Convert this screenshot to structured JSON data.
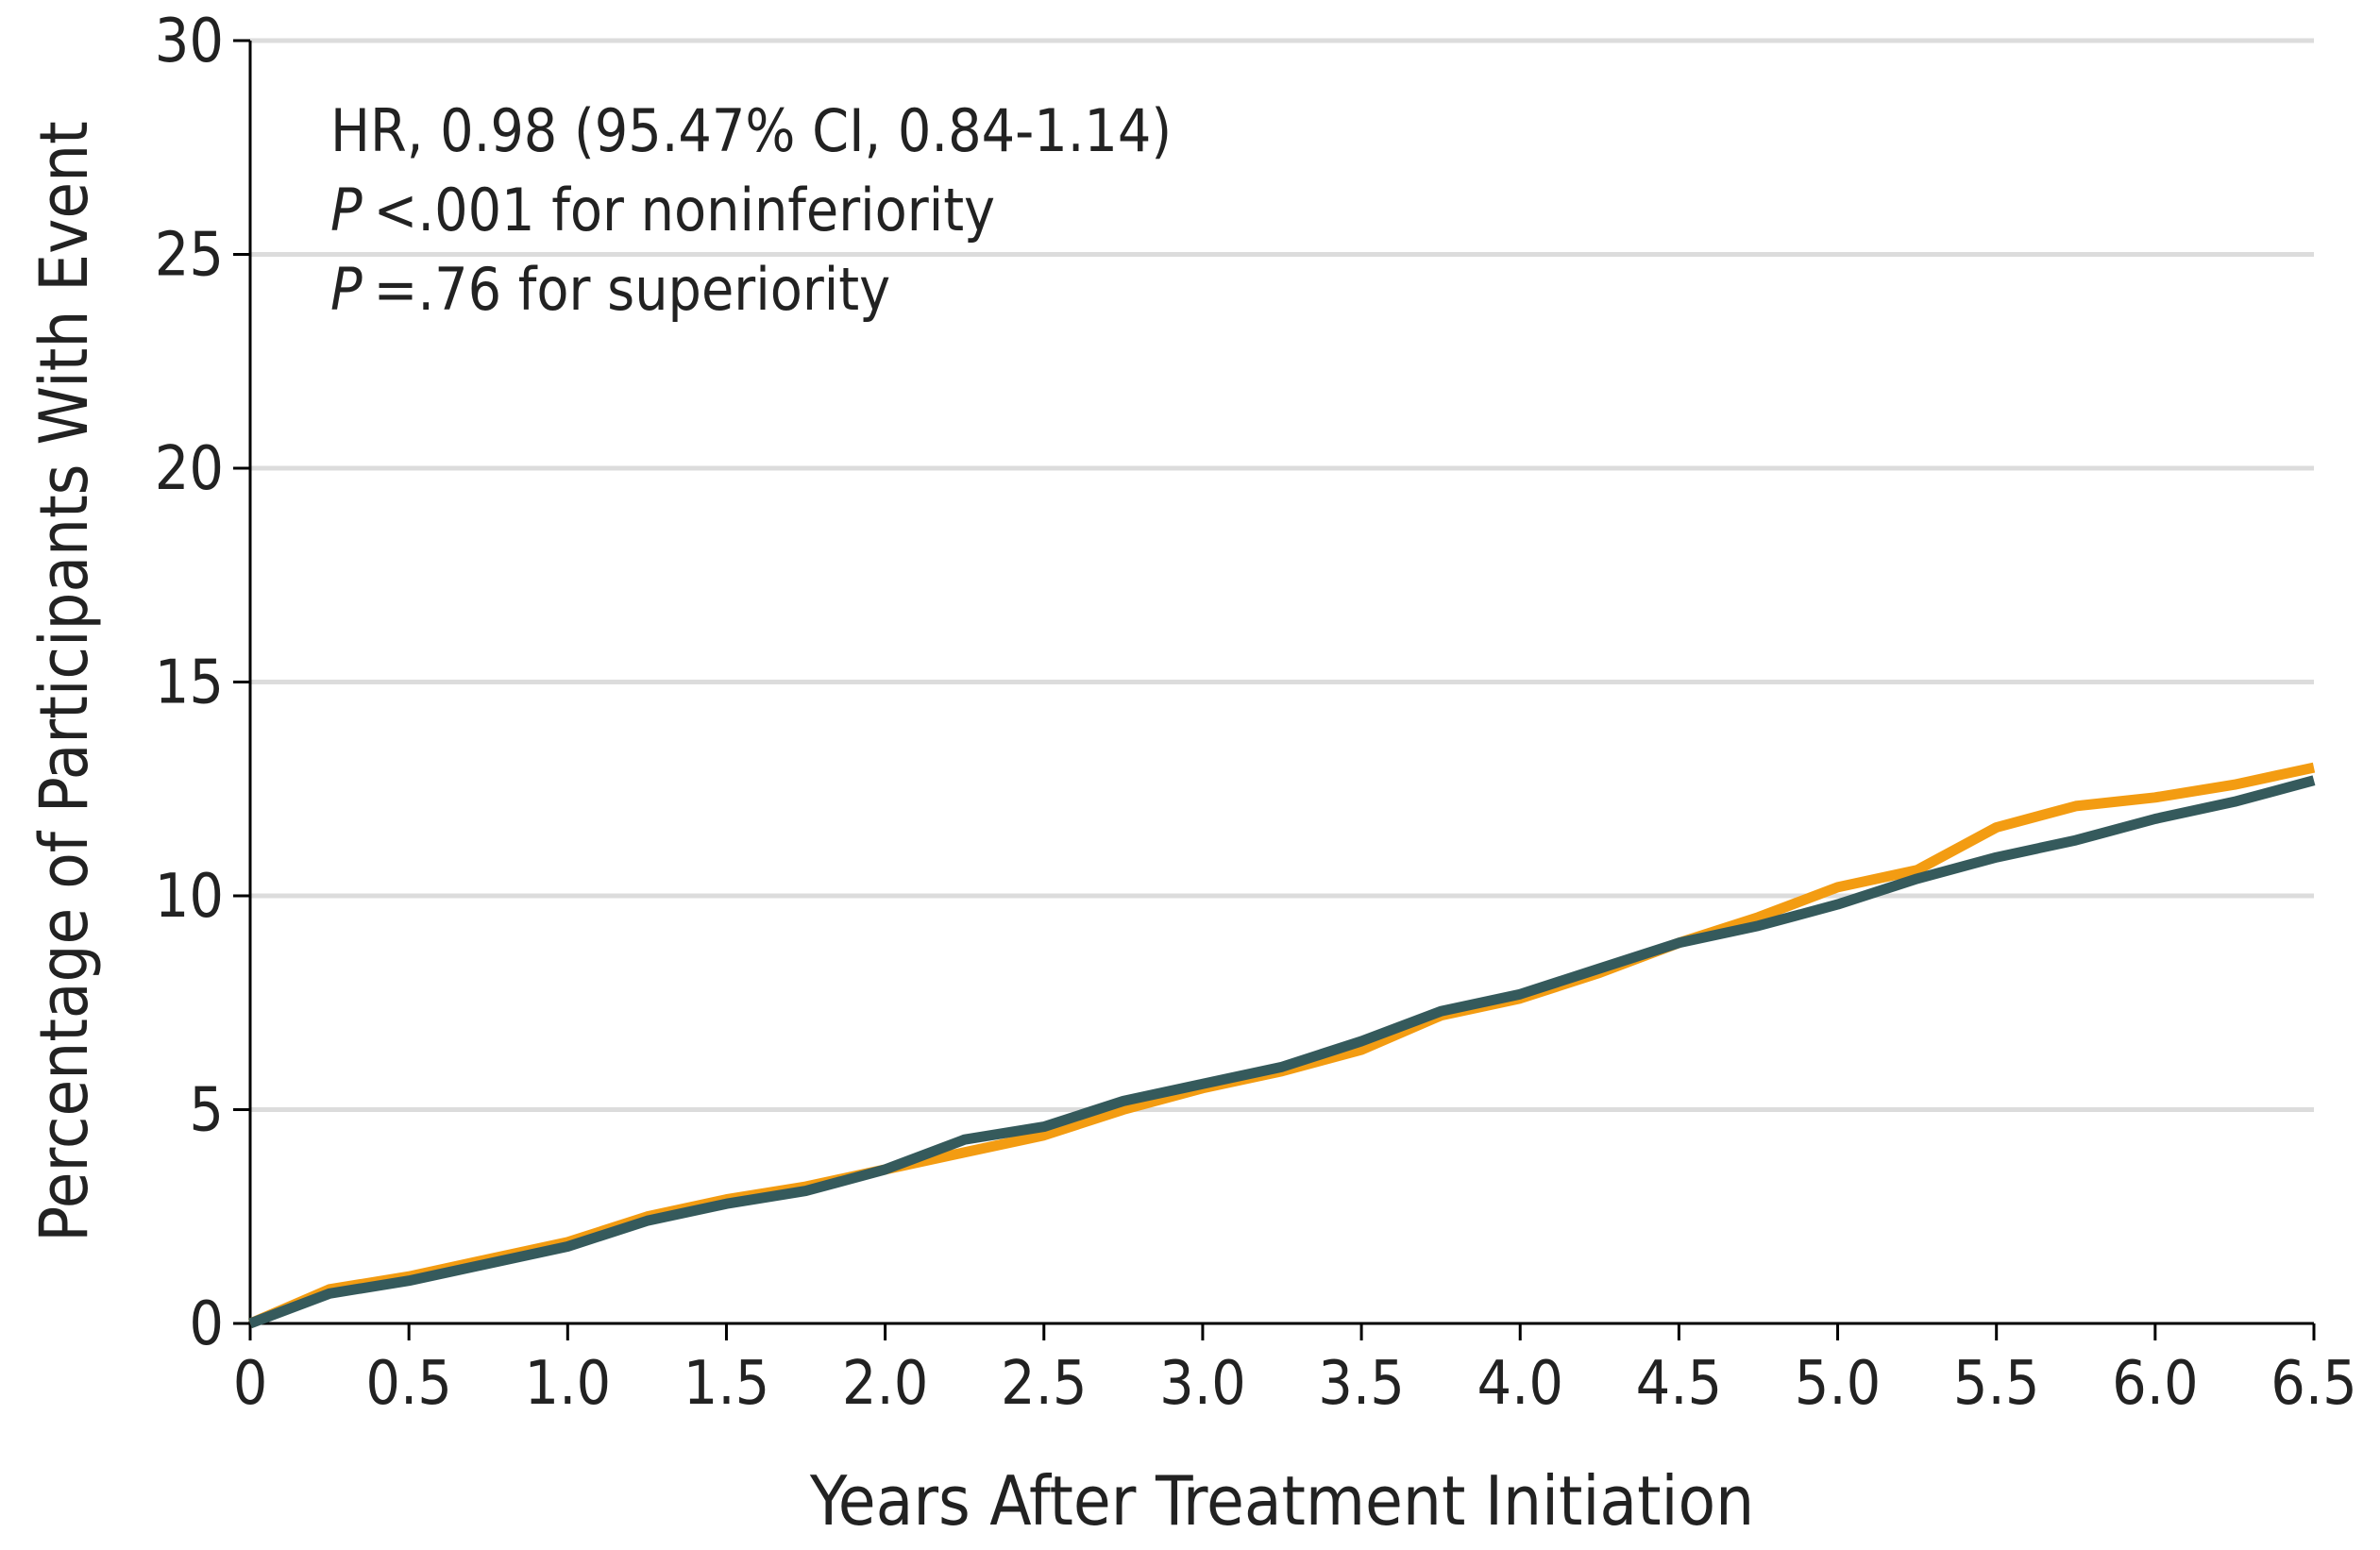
{
  "chart_data": {
    "type": "line",
    "annotations": [
      "HR, 0.98 (95.47% CI, 0.84-1.14)",
      [
        "P",
        "<.001 for noninferiority"
      ],
      [
        "P",
        "=.76 for superiority"
      ]
    ],
    "x_label": "Years After Treatment Initiation",
    "y_label": "Percentage of Participants With Event",
    "x": [
      0,
      0.25,
      0.5,
      0.75,
      1.0,
      1.25,
      1.5,
      1.75,
      2.0,
      2.25,
      2.5,
      2.75,
      3.0,
      3.25,
      3.5,
      3.75,
      4.0,
      4.25,
      4.5,
      4.75,
      5.0,
      5.25,
      5.5,
      5.75,
      6.0,
      6.25,
      6.5
    ],
    "series": [
      {
        "color": "#f39c12",
        "values": [
          0,
          0.8,
          1.1,
          1.5,
          1.9,
          2.5,
          2.9,
          3.2,
          3.6,
          4.0,
          4.4,
          5.0,
          5.5,
          5.9,
          6.4,
          7.2,
          7.6,
          8.2,
          8.9,
          9.5,
          10.2,
          10.6,
          11.6,
          12.1,
          12.3,
          12.6,
          13.0
        ]
      },
      {
        "color": "#355a5c",
        "values": [
          0,
          0.7,
          1.0,
          1.4,
          1.8,
          2.4,
          2.8,
          3.1,
          3.6,
          4.3,
          4.6,
          5.2,
          5.6,
          6.0,
          6.6,
          7.3,
          7.7,
          8.3,
          8.9,
          9.3,
          9.8,
          10.4,
          10.9,
          11.3,
          11.8,
          12.2,
          12.7
        ]
      }
    ],
    "xlim": [
      0,
      6.5
    ],
    "xticks": [
      0,
      0.5,
      {
        "value": 1,
        "label": "1.0"
      },
      1.5,
      {
        "value": 2,
        "label": "2.0"
      },
      2.5,
      {
        "value": 3,
        "label": "3.0"
      },
      3.5,
      {
        "value": 4,
        "label": "4.0"
      },
      4.5,
      {
        "value": 5,
        "label": "5.0"
      },
      5.5,
      {
        "value": 6,
        "label": "6.0"
      },
      6.5
    ],
    "ylim": [
      0,
      30
    ],
    "yticks": [
      0,
      5,
      10,
      15,
      20,
      25,
      30
    ],
    "grid": true
  }
}
